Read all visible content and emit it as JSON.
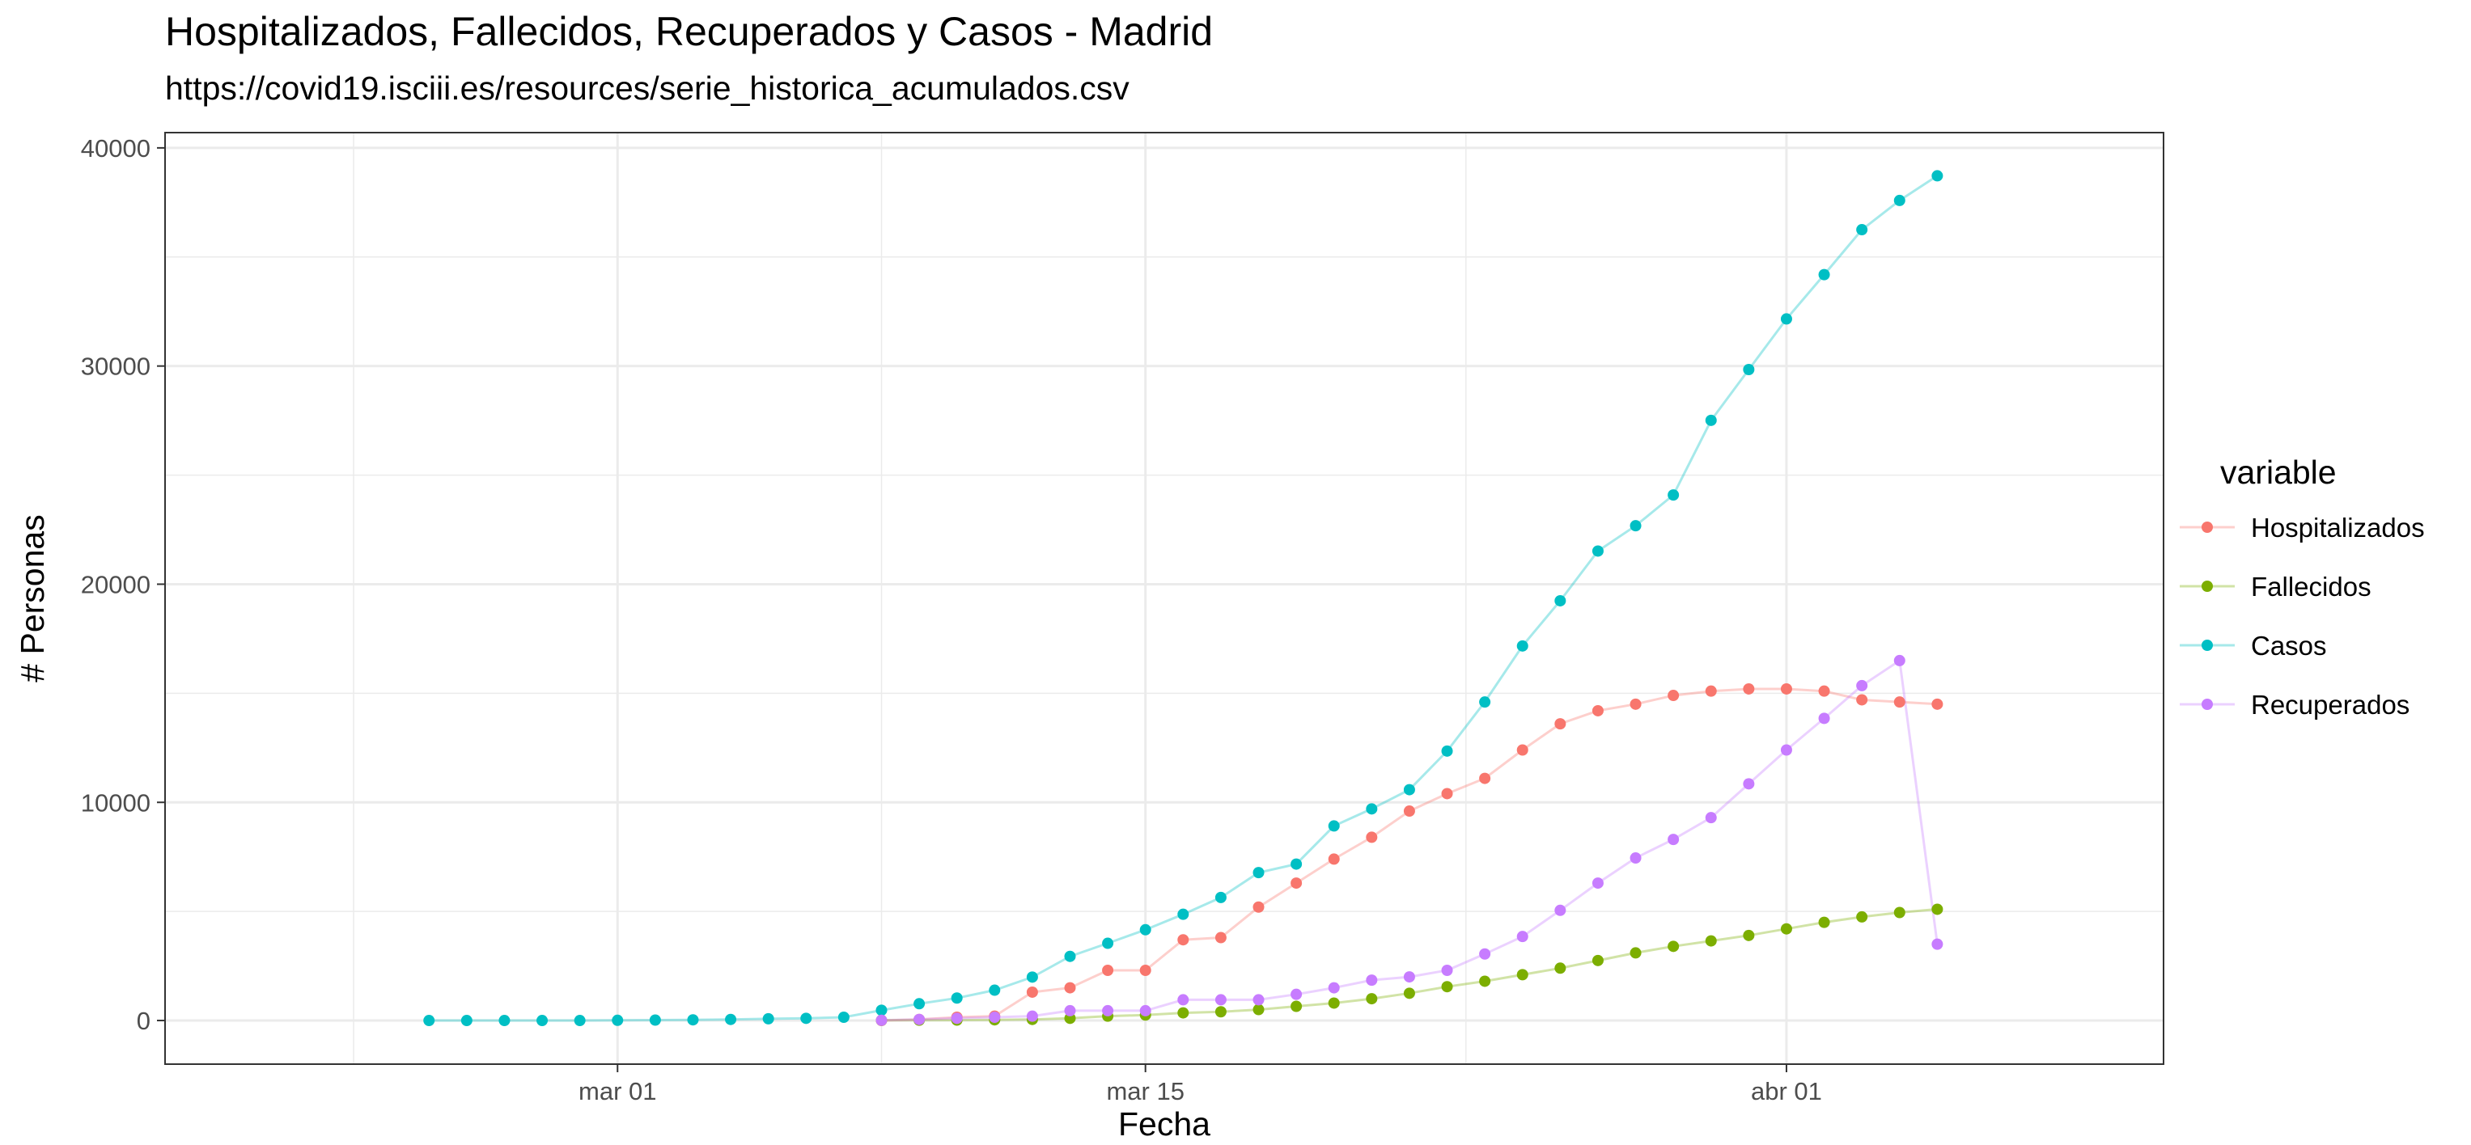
{
  "chart_data": {
    "type": "line",
    "title": "Hospitalizados, Fallecidos, Recuperados y Casos - Madrid",
    "subtitle": "https://covid19.isciii.es/resources/serie_historica_acumulados.csv",
    "xlabel": "Fecha",
    "ylabel": "# Personas",
    "x_type": "date",
    "xlim": [
      "2020-02-18",
      "2020-04-11"
    ],
    "ylim": [
      -2000,
      40700
    ],
    "x_ticks": [
      {
        "date": "2020-03-01",
        "label": "mar 01"
      },
      {
        "date": "2020-03-15",
        "label": "mar 15"
      },
      {
        "date": "2020-04-01",
        "label": "abr 01"
      }
    ],
    "y_ticks": [
      0,
      10000,
      20000,
      30000,
      40000
    ],
    "grid": true,
    "markers": true,
    "legend": {
      "title": "variable",
      "position": "right"
    },
    "series": [
      {
        "name": "Hospitalizados",
        "color": "#F8766D",
        "x": [
          "2020-03-08",
          "2020-03-09",
          "2020-03-10",
          "2020-03-11",
          "2020-03-12",
          "2020-03-13",
          "2020-03-14",
          "2020-03-15",
          "2020-03-16",
          "2020-03-17",
          "2020-03-18",
          "2020-03-19",
          "2020-03-20",
          "2020-03-21",
          "2020-03-22",
          "2020-03-23",
          "2020-03-24",
          "2020-03-25",
          "2020-03-26",
          "2020-03-27",
          "2020-03-28",
          "2020-03-29",
          "2020-03-30",
          "2020-03-31",
          "2020-04-01",
          "2020-04-02",
          "2020-04-03",
          "2020-04-04",
          "2020-04-05"
        ],
        "y": [
          0,
          50,
          150,
          200,
          1300,
          1500,
          2300,
          2300,
          3700,
          3800,
          5200,
          6300,
          7400,
          8400,
          9600,
          10400,
          11100,
          12400,
          13600,
          14200,
          14500,
          14900,
          15100,
          15200,
          15200,
          15100,
          14700,
          14600,
          14500
        ]
      },
      {
        "name": "Fallecidos",
        "color": "#7CAE00",
        "x": [
          "2020-03-08",
          "2020-03-09",
          "2020-03-10",
          "2020-03-11",
          "2020-03-12",
          "2020-03-13",
          "2020-03-14",
          "2020-03-15",
          "2020-03-16",
          "2020-03-17",
          "2020-03-18",
          "2020-03-19",
          "2020-03-20",
          "2020-03-21",
          "2020-03-22",
          "2020-03-23",
          "2020-03-24",
          "2020-03-25",
          "2020-03-26",
          "2020-03-27",
          "2020-03-28",
          "2020-03-29",
          "2020-03-30",
          "2020-03-31",
          "2020-04-01",
          "2020-04-02",
          "2020-04-03",
          "2020-04-04",
          "2020-04-05"
        ],
        "y": [
          10,
          15,
          20,
          30,
          50,
          100,
          200,
          250,
          350,
          400,
          500,
          650,
          800,
          1000,
          1250,
          1550,
          1800,
          2100,
          2400,
          2750,
          3100,
          3400,
          3650,
          3900,
          4200,
          4500,
          4750,
          4950,
          5100
        ]
      },
      {
        "name": "Casos",
        "color": "#00BFC4",
        "x": [
          "2020-02-25",
          "2020-02-26",
          "2020-02-27",
          "2020-02-28",
          "2020-02-29",
          "2020-03-01",
          "2020-03-02",
          "2020-03-03",
          "2020-03-04",
          "2020-03-05",
          "2020-03-06",
          "2020-03-07",
          "2020-03-08",
          "2020-03-09",
          "2020-03-10",
          "2020-03-11",
          "2020-03-12",
          "2020-03-13",
          "2020-03-14",
          "2020-03-15",
          "2020-03-16",
          "2020-03-17",
          "2020-03-18",
          "2020-03-19",
          "2020-03-20",
          "2020-03-21",
          "2020-03-22",
          "2020-03-23",
          "2020-03-24",
          "2020-03-25",
          "2020-03-26",
          "2020-03-27",
          "2020-03-28",
          "2020-03-29",
          "2020-03-30",
          "2020-03-31",
          "2020-04-01",
          "2020-04-02",
          "2020-04-03",
          "2020-04-04",
          "2020-04-05"
        ],
        "y": [
          0,
          0,
          0,
          0,
          0,
          10,
          20,
          30,
          50,
          80,
          100,
          150,
          470,
          770,
          1030,
          1390,
          1990,
          2940,
          3540,
          4160,
          4870,
          5640,
          6780,
          7170,
          8920,
          9700,
          10580,
          12350,
          14600,
          17170,
          19240,
          21520,
          22680,
          24090,
          27510,
          29840,
          32160,
          34190,
          36250,
          37590,
          38720
        ]
      },
      {
        "name": "Recuperados",
        "color": "#C77CFF",
        "x": [
          "2020-03-08",
          "2020-03-09",
          "2020-03-10",
          "2020-03-11",
          "2020-03-12",
          "2020-03-13",
          "2020-03-14",
          "2020-03-15",
          "2020-03-16",
          "2020-03-17",
          "2020-03-18",
          "2020-03-19",
          "2020-03-20",
          "2020-03-21",
          "2020-03-22",
          "2020-03-23",
          "2020-03-24",
          "2020-03-25",
          "2020-03-26",
          "2020-03-27",
          "2020-03-28",
          "2020-03-29",
          "2020-03-30",
          "2020-03-31",
          "2020-04-01",
          "2020-04-02",
          "2020-04-03",
          "2020-04-04",
          "2020-04-05"
        ],
        "y": [
          10,
          50,
          100,
          150,
          200,
          450,
          450,
          450,
          950,
          950,
          950,
          1200,
          1500,
          1850,
          2000,
          2300,
          3050,
          3850,
          5050,
          6300,
          7450,
          8300,
          9300,
          10850,
          12400,
          13850,
          15350,
          16500,
          3500
        ]
      }
    ]
  }
}
